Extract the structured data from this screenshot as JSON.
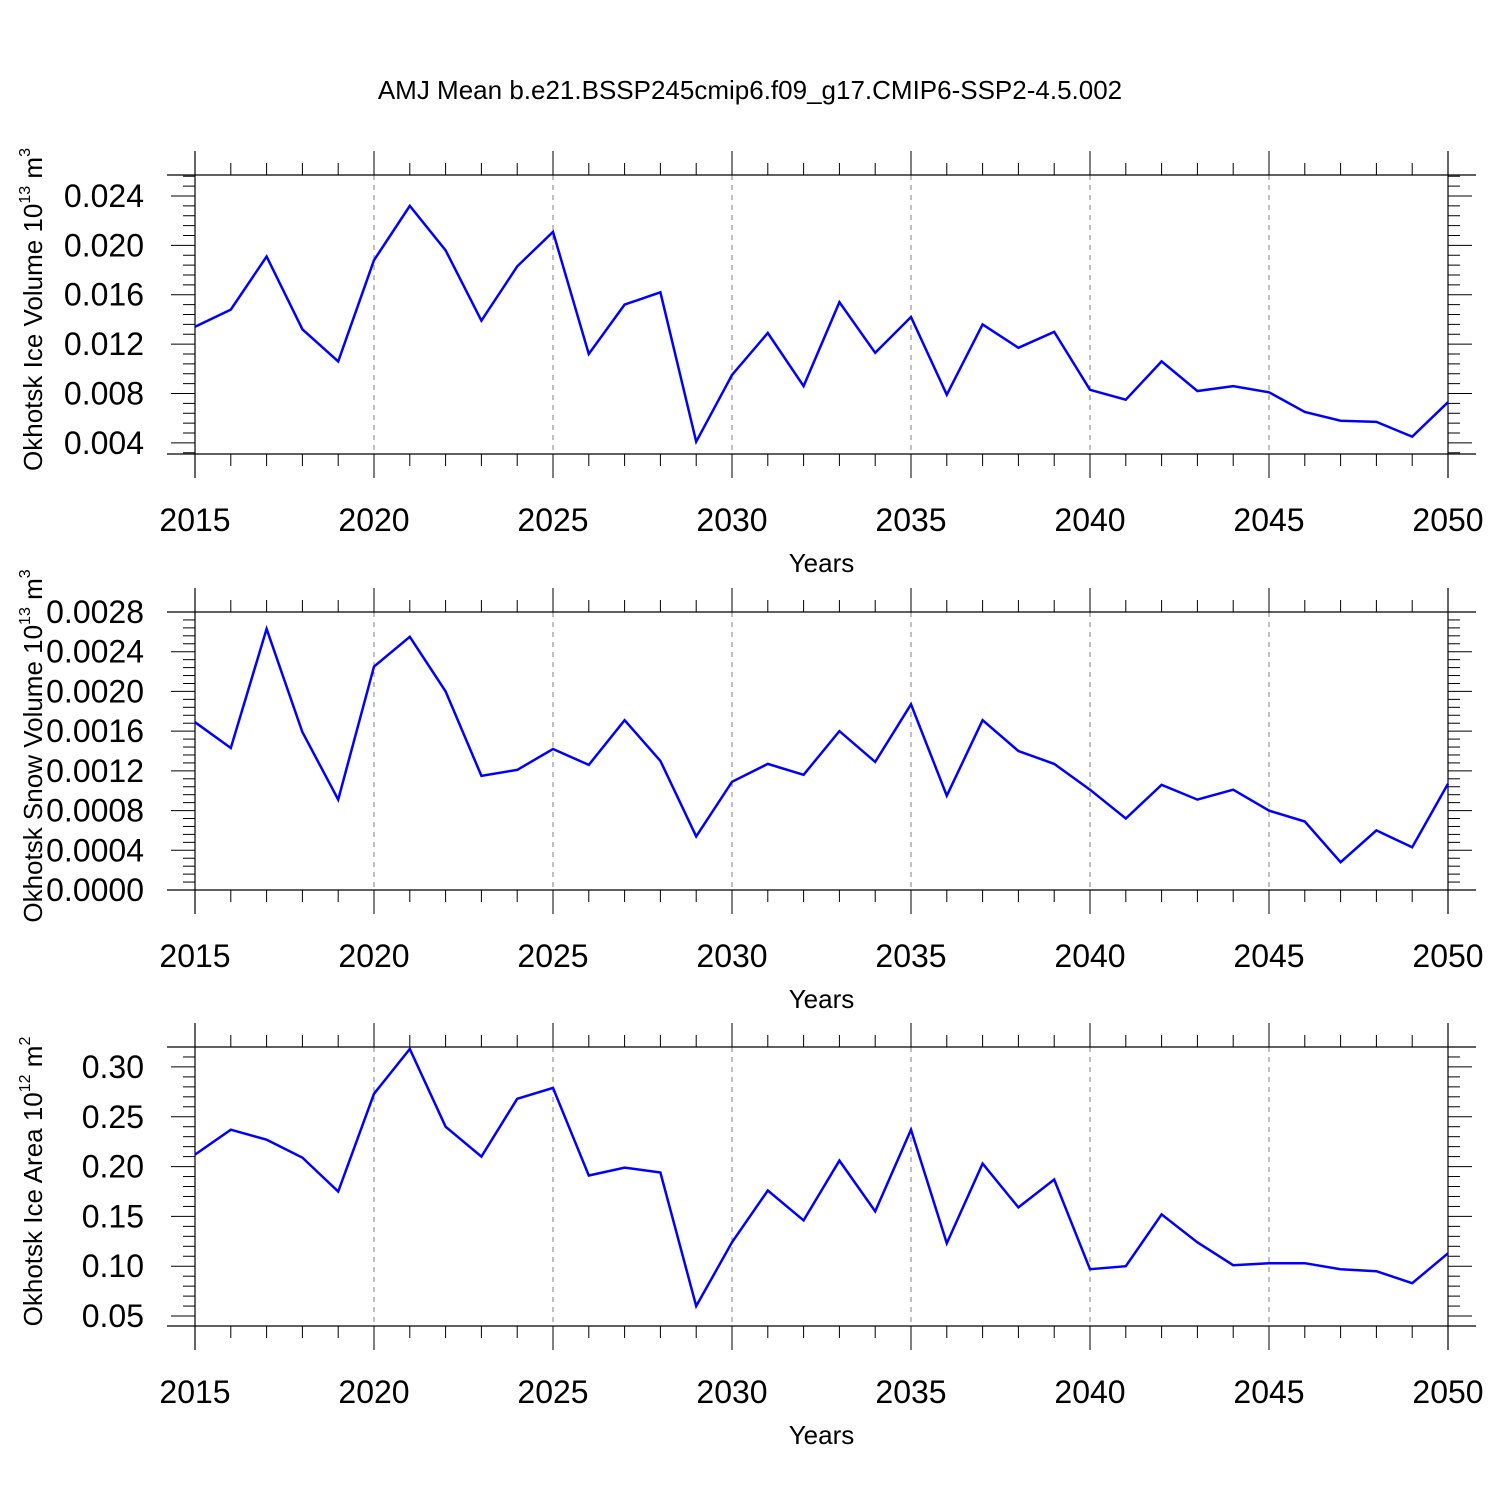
{
  "title": "AMJ Mean b.e21.BSSP245cmip6.f09_g17.CMIP6-SSP2-4.5.002",
  "colors": {
    "line": "#0000ff",
    "axis": "#000000",
    "grid": "#808080"
  },
  "chart_data": [
    {
      "type": "line",
      "ylabel": "Okhotsk Ice Volume",
      "ylabel_unit_base": "10",
      "ylabel_unit_exp": "13",
      "ylabel_unit_sym": "m",
      "ylabel_unit_pow": "3",
      "xlabel": "Years",
      "xlim": [
        2015,
        2050
      ],
      "ylim": [
        0.0031,
        0.0257
      ],
      "yticks": [
        0.004,
        0.008,
        0.012,
        0.016,
        0.02,
        0.024
      ],
      "ytick_labels": [
        "0.004",
        "0.008",
        "0.012",
        "0.016",
        "0.020",
        "0.024"
      ],
      "xticks": [
        2015,
        2020,
        2025,
        2030,
        2035,
        2040,
        2045,
        2050
      ],
      "xtick_labels": [
        "2015",
        "2020",
        "2025",
        "2030",
        "2035",
        "2040",
        "2045",
        "2050"
      ],
      "x": [
        2015,
        2016,
        2017,
        2018,
        2019,
        2020,
        2021,
        2022,
        2023,
        2024,
        2025,
        2026,
        2027,
        2028,
        2029,
        2030,
        2031,
        2032,
        2033,
        2034,
        2035,
        2036,
        2037,
        2038,
        2039,
        2040,
        2041,
        2042,
        2043,
        2044,
        2045,
        2046,
        2047,
        2048,
        2049,
        2050
      ],
      "values": [
        0.0134,
        0.0148,
        0.0191,
        0.0132,
        0.0106,
        0.0188,
        0.0232,
        0.0196,
        0.0139,
        0.0183,
        0.0211,
        0.0112,
        0.0152,
        0.0162,
        0.0041,
        0.0095,
        0.0129,
        0.0086,
        0.0154,
        0.0113,
        0.0142,
        0.0079,
        0.0136,
        0.0117,
        0.013,
        0.0083,
        0.0075,
        0.0106,
        0.0082,
        0.0086,
        0.0081,
        0.0065,
        0.0058,
        0.0057,
        0.0045,
        0.0073
      ]
    },
    {
      "type": "line",
      "ylabel": "Okhotsk Snow Volume",
      "ylabel_unit_base": "10",
      "ylabel_unit_exp": "13",
      "ylabel_unit_sym": "m",
      "ylabel_unit_pow": "3",
      "xlabel": "Years",
      "xlim": [
        2015,
        2050
      ],
      "ylim": [
        0.0,
        0.0028
      ],
      "yticks": [
        0.0,
        0.0004,
        0.0008,
        0.0012,
        0.0016,
        0.002,
        0.0024,
        0.0028
      ],
      "ytick_labels": [
        "0.0000",
        "0.0004",
        "0.0008",
        "0.0012",
        "0.0016",
        "0.0020",
        "0.0024",
        "0.0028"
      ],
      "xticks": [
        2015,
        2020,
        2025,
        2030,
        2035,
        2040,
        2045,
        2050
      ],
      "xtick_labels": [
        "2015",
        "2020",
        "2025",
        "2030",
        "2035",
        "2040",
        "2045",
        "2050"
      ],
      "x": [
        2015,
        2016,
        2017,
        2018,
        2019,
        2020,
        2021,
        2022,
        2023,
        2024,
        2025,
        2026,
        2027,
        2028,
        2029,
        2030,
        2031,
        2032,
        2033,
        2034,
        2035,
        2036,
        2037,
        2038,
        2039,
        2040,
        2041,
        2042,
        2043,
        2044,
        2045,
        2046,
        2047,
        2048,
        2049,
        2050
      ],
      "values": [
        0.00169,
        0.00143,
        0.00263,
        0.00159,
        0.00091,
        0.00225,
        0.00255,
        0.002,
        0.00115,
        0.00121,
        0.00142,
        0.00126,
        0.00171,
        0.0013,
        0.00054,
        0.00109,
        0.00127,
        0.00116,
        0.0016,
        0.00129,
        0.00187,
        0.00095,
        0.00171,
        0.0014,
        0.00127,
        0.00101,
        0.00072,
        0.00106,
        0.00091,
        0.00101,
        0.0008,
        0.00069,
        0.00028,
        0.0006,
        0.00043,
        0.00107
      ]
    },
    {
      "type": "line",
      "ylabel": "Okhotsk Ice Area",
      "ylabel_unit_base": "10",
      "ylabel_unit_exp": "12",
      "ylabel_unit_sym": "m",
      "ylabel_unit_pow": "2",
      "xlabel": "Years",
      "xlim": [
        2015,
        2050
      ],
      "ylim": [
        0.04,
        0.32
      ],
      "yticks": [
        0.05,
        0.1,
        0.15,
        0.2,
        0.25,
        0.3
      ],
      "ytick_labels": [
        "0.05",
        "0.10",
        "0.15",
        "0.20",
        "0.25",
        "0.30"
      ],
      "xticks": [
        2015,
        2020,
        2025,
        2030,
        2035,
        2040,
        2045,
        2050
      ],
      "xtick_labels": [
        "2015",
        "2020",
        "2025",
        "2030",
        "2035",
        "2040",
        "2045",
        "2050"
      ],
      "x": [
        2015,
        2016,
        2017,
        2018,
        2019,
        2020,
        2021,
        2022,
        2023,
        2024,
        2025,
        2026,
        2027,
        2028,
        2029,
        2030,
        2031,
        2032,
        2033,
        2034,
        2035,
        2036,
        2037,
        2038,
        2039,
        2040,
        2041,
        2042,
        2043,
        2044,
        2045,
        2046,
        2047,
        2048,
        2049,
        2050
      ],
      "values": [
        0.212,
        0.237,
        0.227,
        0.209,
        0.175,
        0.273,
        0.318,
        0.24,
        0.21,
        0.268,
        0.279,
        0.191,
        0.199,
        0.194,
        0.06,
        0.124,
        0.176,
        0.146,
        0.206,
        0.155,
        0.237,
        0.123,
        0.203,
        0.159,
        0.187,
        0.097,
        0.1,
        0.152,
        0.124,
        0.101,
        0.103,
        0.103,
        0.097,
        0.095,
        0.083,
        0.113
      ]
    }
  ]
}
